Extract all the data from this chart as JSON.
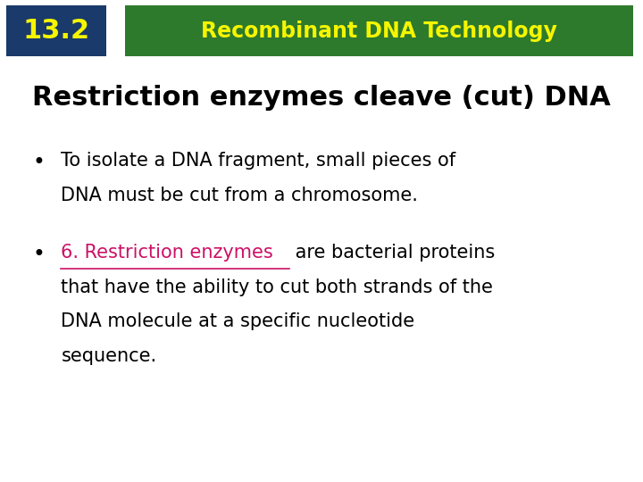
{
  "bg_color": "#ffffff",
  "header_box_color": "#1a3a6b",
  "header_number": "13.2",
  "header_number_color": "#f5f500",
  "header_bar_color": "#2d7a2d",
  "header_title": "Recombinant DNA Technology",
  "header_title_color": "#f5f500",
  "slide_title": "Restriction enzymes cleave (cut) DNA",
  "slide_title_color": "#000000",
  "bullet1_line1": "To isolate a DNA fragment, small pieces of",
  "bullet1_line2": "DNA must be cut from a chromosome.",
  "bullet2_link": "6. Restriction enzymes",
  "bullet2_link_color": "#cc1166",
  "bullet2_line1_rest": " are bacterial proteins",
  "bullet2_line2": "that have the ability to cut both strands of the",
  "bullet2_line3": "DNA molecule at a specific nucleotide",
  "bullet2_line4": "sequence.",
  "bullet_color": "#000000",
  "bullet_symbol": "•",
  "font_family": "sans-serif"
}
